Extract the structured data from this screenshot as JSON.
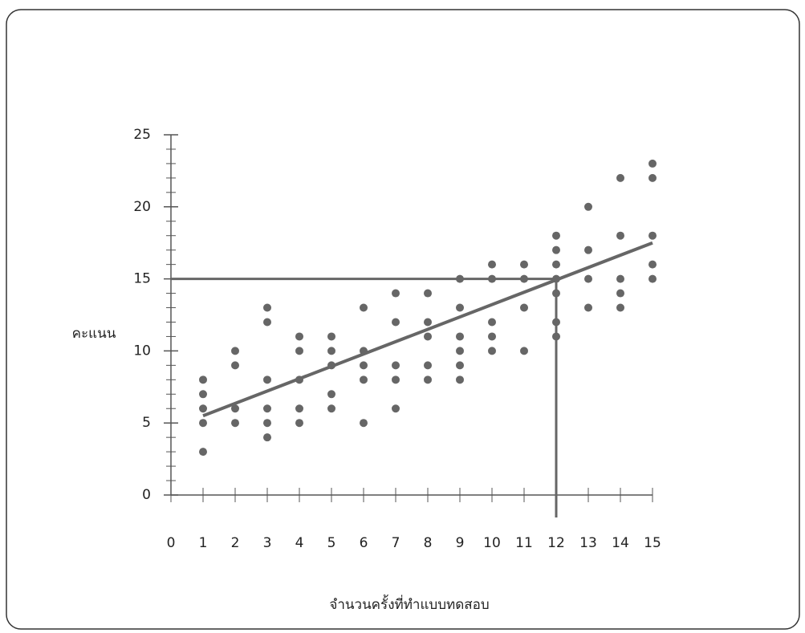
{
  "chart_data": {
    "type": "scatter",
    "x_label": "จำนวนครั้งที่ทำแบบทดสอบ",
    "y_label": "คะแนน",
    "series": [
      {
        "color": "#666666",
        "x": [
          1,
          1,
          1,
          1,
          1,
          2,
          2,
          2,
          2,
          3,
          3,
          3,
          3,
          3,
          3,
          4,
          4,
          4,
          4,
          4,
          5,
          5,
          5,
          5,
          5,
          6,
          6,
          6,
          6,
          6,
          7,
          7,
          7,
          7,
          7,
          8,
          8,
          8,
          8,
          8,
          9,
          9,
          9,
          9,
          9,
          9,
          10,
          10,
          10,
          10,
          10,
          11,
          11,
          11,
          11,
          12,
          12,
          12,
          12,
          12,
          12,
          12,
          13,
          13,
          13,
          13,
          14,
          14,
          14,
          14,
          14,
          15,
          15,
          15,
          15,
          15
        ],
        "values": [
          3,
          5,
          6,
          7,
          8,
          5,
          6,
          9,
          10,
          4,
          5,
          6,
          8,
          12,
          13,
          5,
          6,
          8,
          10,
          11,
          6,
          7,
          9,
          10,
          11,
          5,
          8,
          9,
          10,
          13,
          6,
          8,
          9,
          12,
          14,
          8,
          9,
          11,
          12,
          14,
          8,
          9,
          10,
          11,
          13,
          15,
          10,
          11,
          12,
          15,
          16,
          10,
          13,
          15,
          16,
          11,
          12,
          14,
          15,
          16,
          17,
          18,
          13,
          15,
          17,
          20,
          13,
          14,
          15,
          18,
          22,
          15,
          16,
          18,
          22,
          23
        ]
      }
    ],
    "trend_line": {
      "color": "#666666",
      "x": [
        1,
        15
      ],
      "values": [
        5.5,
        17.5
      ]
    },
    "reference": {
      "color": "#666666",
      "x": 12,
      "y": 15
    },
    "xlim": [
      0,
      15
    ],
    "xticks": [
      0,
      1,
      2,
      3,
      4,
      5,
      6,
      7,
      8,
      9,
      10,
      11,
      12,
      13,
      14,
      15
    ],
    "ylim": [
      0,
      25
    ],
    "yticks": [
      0,
      5,
      10,
      15,
      20,
      25
    ],
    "yminorticks": [
      1,
      2,
      3,
      4,
      6,
      7,
      8,
      9,
      11,
      12,
      13,
      14,
      16,
      17,
      18,
      19,
      21,
      22,
      23,
      24
    ]
  }
}
